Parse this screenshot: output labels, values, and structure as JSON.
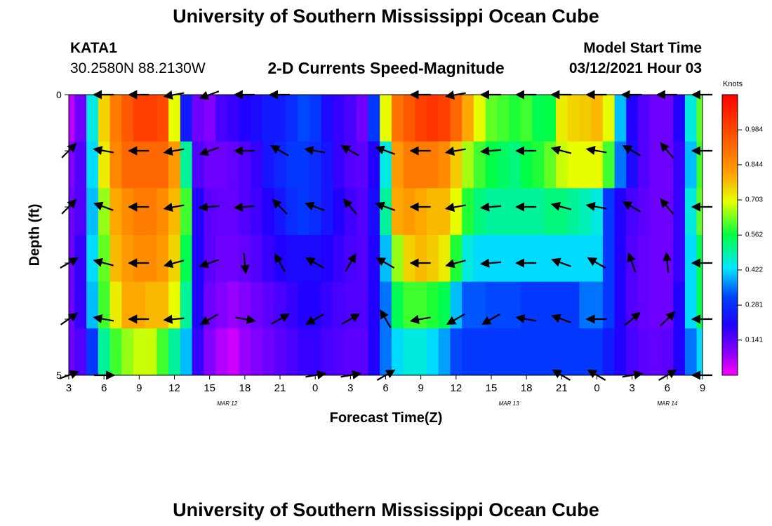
{
  "header": {
    "title": "University of Southern Mississippi Ocean Cube",
    "station": "KATA1",
    "coords": "30.2580N 88.2130W",
    "subtitle": "2-D Currents Speed-Magnitude",
    "model_start_label": "Model Start Time",
    "model_start_value": "03/12/2021 Hour 03"
  },
  "footer": {
    "title": "University of Southern Mississippi Ocean Cube"
  },
  "colorbar": {
    "unit": "Knots",
    "ticks": [
      "0.984",
      "0.844",
      "0.703",
      "0.562",
      "0.422",
      "0.281",
      "0.141"
    ],
    "min": 0.0,
    "max": 1.125
  },
  "chart_data": {
    "type": "heatmap",
    "title": "2-D Currents Speed-Magnitude",
    "xlabel": "Forecast Time(Z)",
    "ylabel": "Depth (ft)",
    "ylim": [
      0,
      5
    ],
    "y_tick_labels": [
      "0",
      "5"
    ],
    "x_tick_labels": [
      "3",
      "6",
      "9",
      "12",
      "15",
      "18",
      "21",
      "0",
      "3",
      "6",
      "9",
      "12",
      "15",
      "18",
      "21",
      "0",
      "3",
      "6",
      "9"
    ],
    "date_labels": [
      "MAR 12",
      "MAR 13",
      "MAR 14"
    ],
    "x_hours": [
      3,
      4,
      5,
      6,
      7,
      8,
      9,
      10,
      11,
      12,
      13,
      14,
      15,
      16,
      17,
      18,
      19,
      20,
      21,
      22,
      23,
      24,
      25,
      26,
      27,
      28,
      29,
      30,
      31,
      32,
      33,
      34,
      35,
      36,
      37,
      38,
      39,
      40,
      41,
      42,
      43,
      44,
      45,
      46,
      47,
      48,
      49,
      50,
      51,
      52,
      53,
      54,
      55,
      56,
      57
    ],
    "depth_layers_ft": [
      0,
      1,
      2,
      3,
      4,
      5
    ],
    "speed_knots": [
      [
        0.05,
        0.12,
        0.45,
        0.75,
        0.88,
        0.95,
        1.0,
        1.0,
        0.98,
        0.7,
        0.25,
        0.12,
        0.1,
        0.16,
        0.18,
        0.2,
        0.22,
        0.25,
        0.25,
        0.28,
        0.32,
        0.3,
        0.22,
        0.18,
        0.16,
        0.12,
        0.3,
        0.7,
        0.9,
        0.95,
        1.0,
        1.02,
        1.0,
        0.92,
        0.8,
        0.7,
        0.62,
        0.6,
        0.58,
        0.6,
        0.55,
        0.56,
        0.72,
        0.75,
        0.76,
        0.78,
        0.7,
        0.4,
        0.2,
        0.15,
        0.12,
        0.12,
        0.2,
        0.45,
        0.62
      ],
      [
        0.1,
        0.15,
        0.42,
        0.72,
        0.86,
        0.92,
        0.92,
        0.92,
        0.92,
        0.82,
        0.5,
        0.15,
        0.12,
        0.12,
        0.13,
        0.15,
        0.18,
        0.24,
        0.27,
        0.3,
        0.3,
        0.28,
        0.24,
        0.18,
        0.15,
        0.14,
        0.2,
        0.45,
        0.82,
        0.88,
        0.88,
        0.88,
        0.85,
        0.76,
        0.66,
        0.6,
        0.56,
        0.54,
        0.52,
        0.56,
        0.58,
        0.62,
        0.68,
        0.7,
        0.7,
        0.7,
        0.6,
        0.35,
        0.22,
        0.15,
        0.12,
        0.12,
        0.18,
        0.4,
        0.6
      ],
      [
        0.12,
        0.15,
        0.4,
        0.65,
        0.8,
        0.85,
        0.88,
        0.88,
        0.85,
        0.78,
        0.6,
        0.2,
        0.14,
        0.13,
        0.13,
        0.15,
        0.17,
        0.2,
        0.24,
        0.28,
        0.3,
        0.28,
        0.24,
        0.2,
        0.17,
        0.15,
        0.22,
        0.5,
        0.8,
        0.82,
        0.8,
        0.78,
        0.78,
        0.7,
        0.58,
        0.52,
        0.5,
        0.5,
        0.5,
        0.5,
        0.5,
        0.52,
        0.52,
        0.5,
        0.48,
        0.45,
        0.3,
        0.2,
        0.16,
        0.14,
        0.12,
        0.12,
        0.18,
        0.45,
        0.62
      ],
      [
        0.12,
        0.18,
        0.42,
        0.62,
        0.78,
        0.82,
        0.85,
        0.85,
        0.82,
        0.75,
        0.55,
        0.2,
        0.14,
        0.12,
        0.12,
        0.13,
        0.15,
        0.18,
        0.2,
        0.22,
        0.22,
        0.22,
        0.2,
        0.18,
        0.16,
        0.15,
        0.2,
        0.4,
        0.65,
        0.75,
        0.78,
        0.76,
        0.72,
        0.58,
        0.45,
        0.42,
        0.42,
        0.42,
        0.42,
        0.42,
        0.42,
        0.42,
        0.42,
        0.42,
        0.42,
        0.42,
        0.3,
        0.2,
        0.15,
        0.13,
        0.12,
        0.12,
        0.18,
        0.42,
        0.55
      ],
      [
        0.12,
        0.18,
        0.4,
        0.6,
        0.72,
        0.8,
        0.8,
        0.78,
        0.78,
        0.7,
        0.5,
        0.2,
        0.12,
        0.1,
        0.08,
        0.1,
        0.12,
        0.14,
        0.16,
        0.18,
        0.2,
        0.2,
        0.18,
        0.16,
        0.15,
        0.15,
        0.2,
        0.35,
        0.55,
        0.6,
        0.6,
        0.58,
        0.55,
        0.4,
        0.33,
        0.33,
        0.32,
        0.32,
        0.32,
        0.3,
        0.3,
        0.3,
        0.3,
        0.3,
        0.35,
        0.35,
        0.3,
        0.2,
        0.15,
        0.13,
        0.12,
        0.12,
        0.2,
        0.42,
        0.55
      ],
      [
        0.12,
        0.15,
        0.3,
        0.5,
        0.6,
        0.65,
        0.68,
        0.68,
        0.6,
        0.5,
        0.4,
        0.18,
        0.1,
        0.06,
        0.04,
        0.08,
        0.1,
        0.12,
        0.14,
        0.16,
        0.18,
        0.18,
        0.16,
        0.15,
        0.14,
        0.14,
        0.2,
        0.35,
        0.42,
        0.45,
        0.45,
        0.42,
        0.38,
        0.32,
        0.3,
        0.3,
        0.3,
        0.3,
        0.3,
        0.3,
        0.3,
        0.3,
        0.3,
        0.3,
        0.3,
        0.3,
        0.25,
        0.2,
        0.16,
        0.14,
        0.13,
        0.14,
        0.2,
        0.35,
        0.42
      ]
    ],
    "vector_x_hours": [
      3,
      6,
      9,
      12,
      15,
      18,
      21,
      24,
      27,
      30,
      33,
      36,
      39,
      42,
      45,
      48,
      51,
      54,
      57
    ],
    "vector_depths_ft": [
      0,
      1,
      2,
      3,
      4,
      5
    ],
    "vector_direction_deg": [
      [
        null,
        270,
        270,
        260,
        250,
        270,
        270,
        null,
        null,
        null,
        270,
        260,
        270,
        270,
        270,
        270,
        270,
        270,
        270
      ],
      [
        45,
        280,
        270,
        260,
        250,
        270,
        300,
        280,
        300,
        290,
        270,
        260,
        265,
        270,
        285,
        280,
        300,
        320,
        270
      ],
      [
        45,
        290,
        270,
        260,
        265,
        265,
        315,
        290,
        320,
        290,
        270,
        260,
        265,
        270,
        285,
        280,
        300,
        320,
        270
      ],
      [
        60,
        285,
        270,
        255,
        250,
        175,
        330,
        300,
        30,
        300,
        270,
        255,
        265,
        270,
        290,
        300,
        340,
        355,
        270
      ],
      [
        55,
        280,
        270,
        265,
        240,
        100,
        60,
        240,
        60,
        330,
        260,
        240,
        240,
        280,
        290,
        270,
        50,
        45,
        270
      ],
      [
        70,
        90,
        null,
        null,
        null,
        null,
        null,
        80,
        80,
        60,
        null,
        null,
        null,
        null,
        300,
        300,
        80,
        60,
        270
      ]
    ]
  }
}
